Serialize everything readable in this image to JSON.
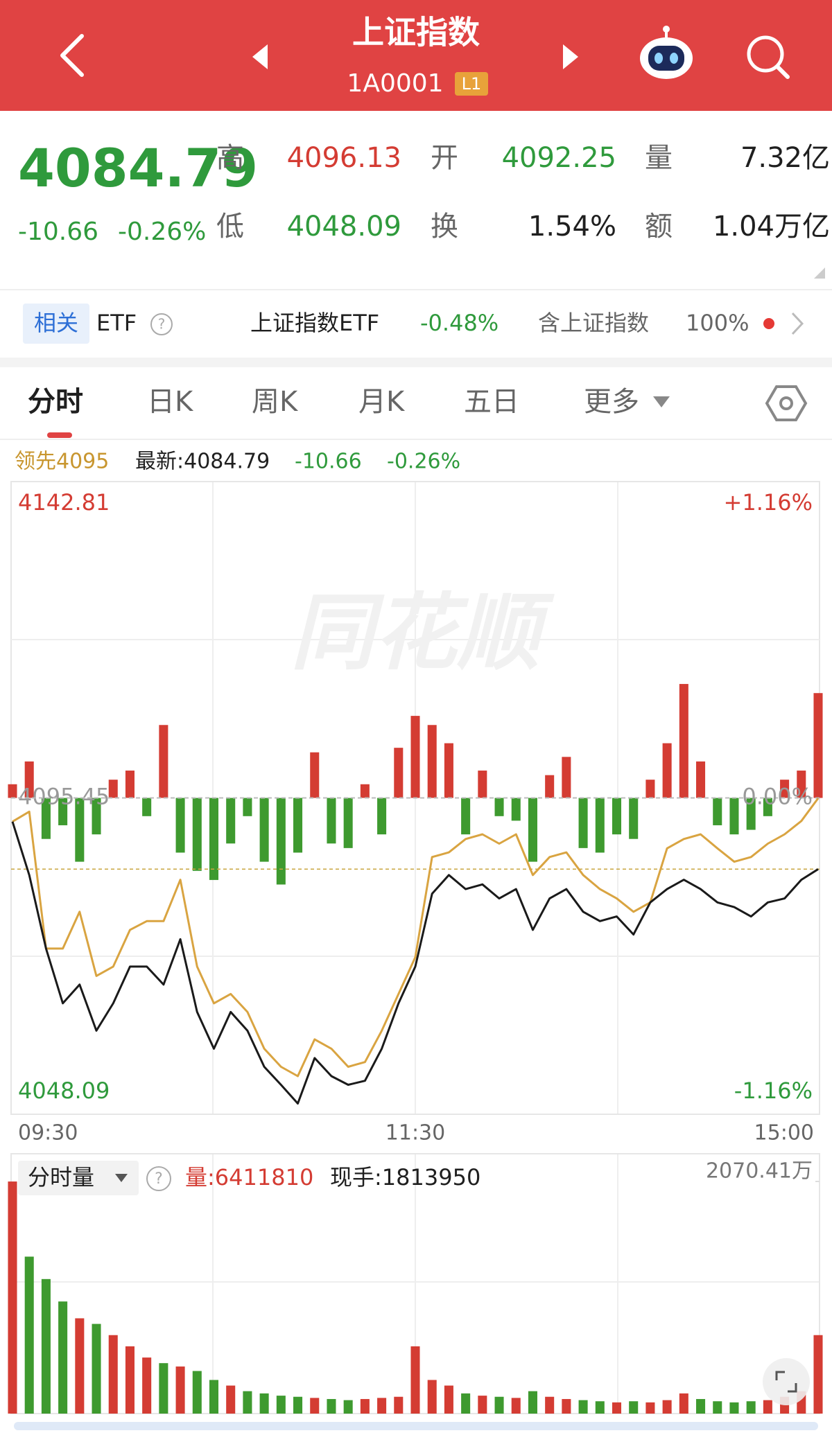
{
  "header": {
    "title": "上证指数",
    "code": "1A0001",
    "level": "L1"
  },
  "quote": {
    "price": "4084.79",
    "change": "-10.66",
    "change_pct": "-0.26%",
    "fields": [
      {
        "label": "高",
        "value": "4096.13"
      },
      {
        "label": "开",
        "value": "4092.25"
      },
      {
        "label": "量",
        "value": "7.32亿"
      },
      {
        "label": "低",
        "value": "4048.09"
      },
      {
        "label": "换",
        "value": "1.54%"
      },
      {
        "label": "额",
        "value": "1.04万亿"
      }
    ]
  },
  "etf_bar": {
    "tag": "相关",
    "label": "ETF",
    "help": "?",
    "name": "上证指数ETF",
    "change": "-0.48%",
    "holding": "含上证指数",
    "weight": "100%"
  },
  "tabs": [
    "分时",
    "日K",
    "周K",
    "月K",
    "五日",
    "更多"
  ],
  "chart_info": {
    "lead": "领先4095",
    "latest": "最新:4084.79",
    "change": "-10.66",
    "change_pct": "-0.26%"
  },
  "watermark": "同花顺",
  "volume_info": {
    "selector": "分时量",
    "help": "?",
    "volume": "量:6411810",
    "current": "现手:1813950"
  },
  "chart_data": [
    {
      "type": "line",
      "categories": [
        "09:30",
        null,
        null,
        null,
        null,
        null,
        null,
        null,
        null,
        null,
        null,
        null,
        null,
        null,
        null,
        null,
        null,
        null,
        null,
        null,
        null,
        null,
        null,
        null,
        "11:30",
        null,
        null,
        null,
        null,
        null,
        null,
        null,
        null,
        null,
        null,
        null,
        null,
        null,
        null,
        null,
        null,
        null,
        null,
        null,
        null,
        null,
        null,
        null,
        "15:00"
      ],
      "series": [
        {
          "color": "#1a1a1a",
          "values": [
            4091.9,
            4083.9,
            4072.9,
            4064.7,
            4067.5,
            4060.6,
            4064.7,
            4070.2,
            4070.2,
            4067.5,
            4074.3,
            4063.4,
            4057.9,
            4063.4,
            4060.6,
            4055.2,
            4052.5,
            4049.7,
            4056.5,
            4053.8,
            4052.5,
            4053.1,
            4057.9,
            4064.7,
            4070.2,
            4081.1,
            4083.9,
            4081.8,
            4082.5,
            4080.4,
            4081.8,
            4075.7,
            4080.4,
            4081.8,
            4078.4,
            4077.0,
            4077.7,
            4075.0,
            4079.8,
            4081.8,
            4083.2,
            4081.8,
            4079.8,
            4079.1,
            4077.7,
            4079.8,
            4080.4,
            4083.2,
            4084.79
          ]
        },
        {
          "color": "#d9a441",
          "values": [
            4091.9,
            4093.4,
            4072.9,
            4072.9,
            4078.4,
            4068.8,
            4070.2,
            4075.7,
            4077.0,
            4077.0,
            4083.2,
            4070.2,
            4064.7,
            4066.1,
            4063.4,
            4057.9,
            4055.2,
            4053.8,
            4059.3,
            4057.9,
            4055.2,
            4055.9,
            4060.6,
            4066.1,
            4071.6,
            4086.6,
            4087.3,
            4089.3,
            4090.0,
            4088.6,
            4090.0,
            4083.9,
            4086.6,
            4087.3,
            4083.9,
            4081.8,
            4080.4,
            4078.4,
            4079.8,
            4087.9,
            4089.3,
            4090.0,
            4087.9,
            4085.9,
            4086.6,
            4088.6,
            4090.0,
            4092.0,
            4095.4
          ]
        }
      ],
      "ylim": [
        4048.09,
        4142.81
      ],
      "yticks": [
        4048.09,
        4095.45,
        4142.81
      ],
      "y2lim": [
        -1.16,
        1.16
      ],
      "y2ticks": [
        {
          "value": -1.16,
          "label": "-1.16%"
        },
        {
          "value": 0,
          "label": "0.00%"
        },
        {
          "value": 1.16,
          "label": "+1.16%"
        }
      ],
      "up_color": "#d43c33",
      "down_color": "#2f9a3c"
    },
    {
      "type": "bar",
      "values": [
        15,
        40,
        -45,
        -30,
        -70,
        -40,
        20,
        30,
        -20,
        80,
        -60,
        -80,
        -90,
        -50,
        -20,
        -70,
        -95,
        -60,
        50,
        -50,
        -55,
        15,
        -40,
        55,
        90,
        80,
        60,
        -40,
        30,
        -20,
        -25,
        -70,
        25,
        45,
        -55,
        -60,
        -40,
        -45,
        20,
        60,
        125,
        40,
        -30,
        -40,
        -35,
        -20,
        20,
        30,
        115
      ],
      "ylim": [
        -347,
        347
      ],
      "up_color": "#d43c33",
      "down_color": "#3e9a2f"
    },
    {
      "type": "bar",
      "values": [
        2070,
        1400,
        1200,
        1000,
        850,
        800,
        700,
        600,
        500,
        450,
        420,
        380,
        300,
        250,
        200,
        180,
        160,
        150,
        140,
        130,
        120,
        130,
        140,
        150,
        600,
        300,
        250,
        180,
        160,
        150,
        140,
        200,
        150,
        130,
        120,
        110,
        100,
        110,
        100,
        120,
        180,
        130,
        110,
        100,
        110,
        120,
        150,
        200,
        700
      ],
      "ylim": [
        0,
        2070.41
      ],
      "yticks": [
        {
          "value": 2070.41,
          "label": "2070.41万"
        }
      ],
      "up_color": "#d43c33",
      "down_color": "#3e9a2f"
    }
  ]
}
